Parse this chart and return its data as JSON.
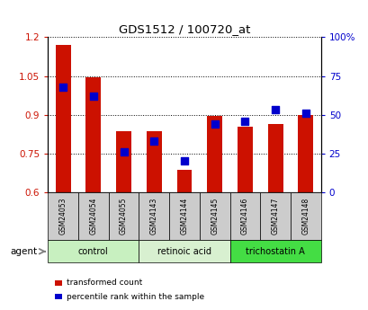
{
  "title": "GDS1512 / 100720_at",
  "samples": [
    "GSM24053",
    "GSM24054",
    "GSM24055",
    "GSM24143",
    "GSM24144",
    "GSM24145",
    "GSM24146",
    "GSM24147",
    "GSM24148"
  ],
  "transformed_count": [
    1.17,
    1.045,
    0.835,
    0.835,
    0.685,
    0.895,
    0.855,
    0.865,
    0.9
  ],
  "percentile_rank": [
    68,
    62,
    26,
    33,
    20,
    44,
    46,
    53,
    51
  ],
  "ylim_left": [
    0.6,
    1.2
  ],
  "ylim_right": [
    0,
    100
  ],
  "yticks_left": [
    0.6,
    0.75,
    0.9,
    1.05,
    1.2
  ],
  "ytick_labels_left": [
    "0.6",
    "0.75",
    "0.9",
    "1.05",
    "1.2"
  ],
  "yticks_right": [
    0,
    25,
    50,
    75,
    100
  ],
  "ytick_labels_right": [
    "0",
    "25",
    "50",
    "75",
    "100%"
  ],
  "groups": [
    {
      "label": "control",
      "indices": [
        0,
        1,
        2
      ],
      "color": "#c8f0c0"
    },
    {
      "label": "retinoic acid",
      "indices": [
        3,
        4,
        5
      ],
      "color": "#d8f0d0"
    },
    {
      "label": "trichostatin A",
      "indices": [
        6,
        7,
        8
      ],
      "color": "#44dd44"
    }
  ],
  "bar_color": "#cc1100",
  "dot_color": "#0000cc",
  "bar_width": 0.5,
  "dot_size": 30,
  "background_color": "#ffffff",
  "plot_bg": "#ffffff",
  "tick_label_color_left": "#cc1100",
  "tick_label_color_right": "#0000cc",
  "agent_label": "agent",
  "legend_items": [
    "transformed count",
    "percentile rank within the sample"
  ],
  "sample_box_color": "#cccccc",
  "grid_linestyle": "dotted"
}
